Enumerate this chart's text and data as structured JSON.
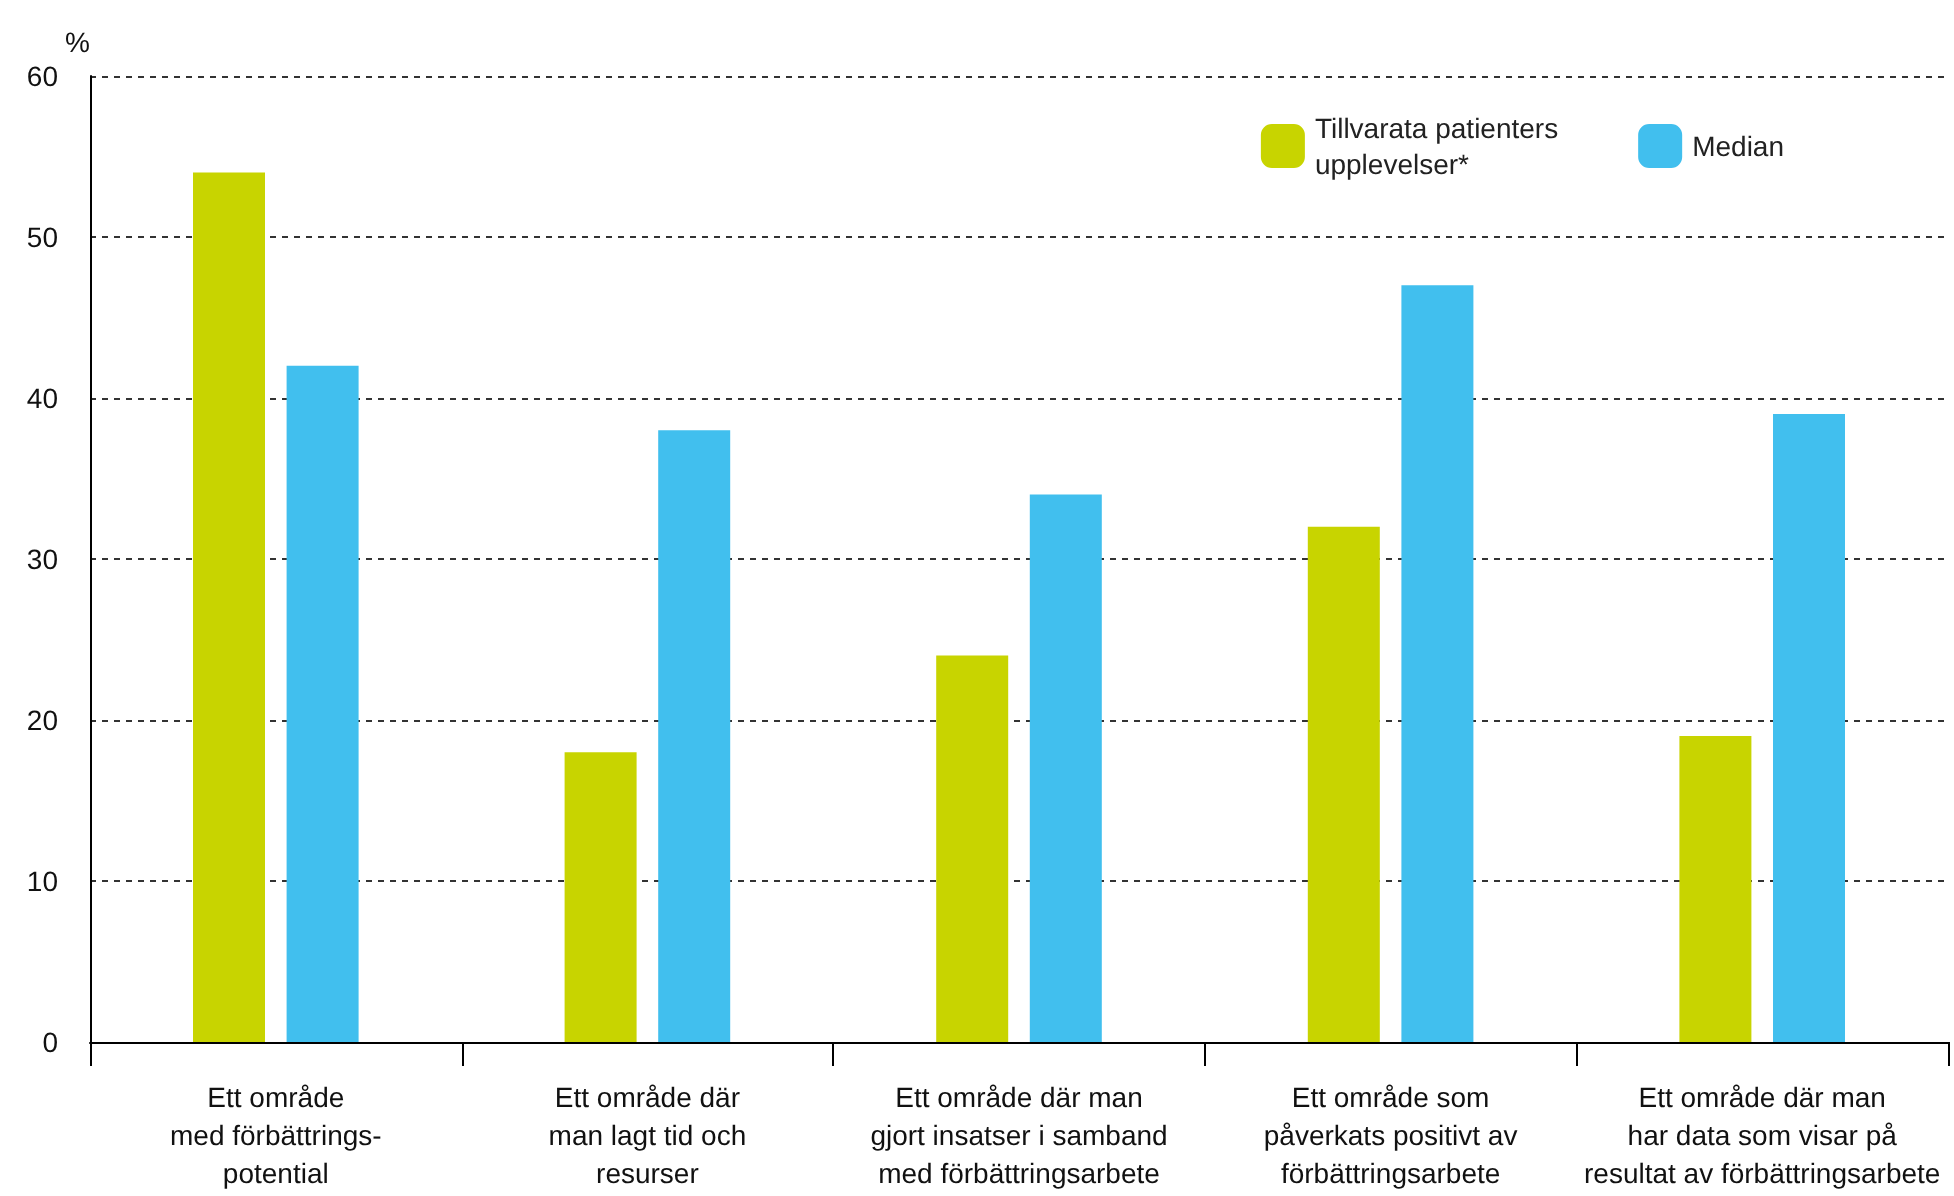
{
  "chart_data": {
    "type": "bar",
    "ylabel": "%",
    "categories": [
      "Ett område\nmed förbättrings-\npotential",
      "Ett område där\nman lagt tid och\nresurser",
      "Ett område där man\ngjort insatser i samband\nmed förbättringsarbete",
      "Ett område som\npåverkats positivt av\nförbättringsarbete",
      "Ett område där man\nhar data som visar på\nresultat av förbättringsarbete"
    ],
    "series": [
      {
        "name": "Tillvarata patienters\nupplevelser*",
        "color": "#c8d400",
        "values": [
          54,
          18,
          24,
          32,
          19
        ]
      },
      {
        "name": "Median",
        "color": "#41bfee",
        "values": [
          42,
          38,
          34,
          47,
          39
        ]
      }
    ],
    "ylim": [
      0,
      60
    ],
    "yticks": [
      0,
      10,
      20,
      30,
      40,
      50,
      60
    ],
    "grid": "y",
    "legend": "top right"
  }
}
